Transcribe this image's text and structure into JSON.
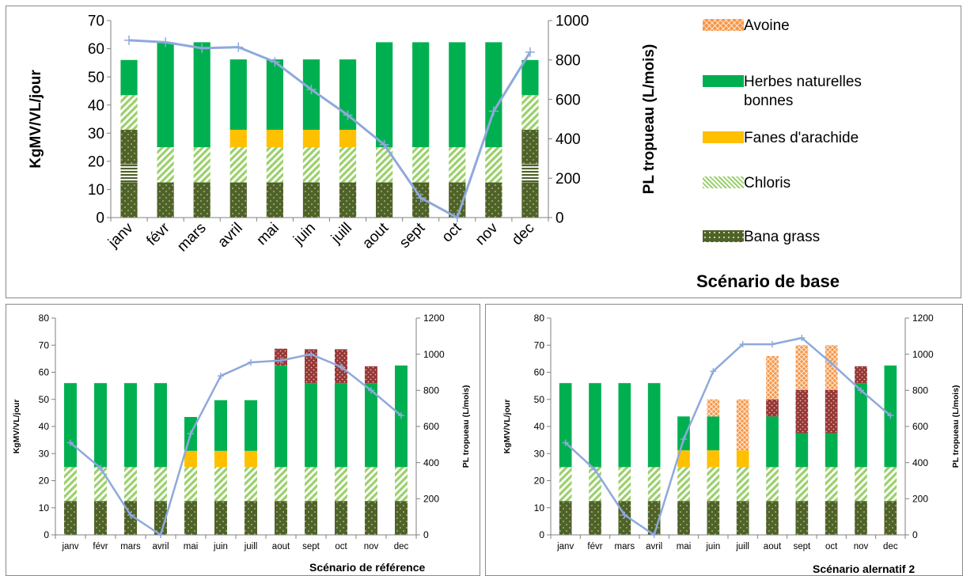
{
  "legend": [
    {
      "key": "avoine",
      "label": "Avoine"
    },
    {
      "key": "herbes",
      "label": "Herbes naturelles bonnes"
    },
    {
      "key": "fanes",
      "label": "Fanes d'arachide"
    },
    {
      "key": "chloris",
      "label": "Chloris"
    },
    {
      "key": "bana",
      "label": "Bana grass"
    }
  ],
  "colors": {
    "bana": "#4f6228",
    "chloris": "#9bd06b",
    "fanes": "#ffc000",
    "herbes": "#00b050",
    "rouge": "#953735",
    "avoine": "#f79646",
    "line": "#8ea9db",
    "grid": "#d9d9d9",
    "axis": "#808080"
  },
  "chart_data": [
    {
      "type": "bar",
      "title": "Scénario de base",
      "ylabel": "KgMV/VL/jour",
      "y2label": "PL tropueau (L/mois)",
      "ylim": [
        0,
        70
      ],
      "yticks": [
        0,
        10,
        20,
        30,
        40,
        50,
        60,
        70
      ],
      "y2lim": [
        0,
        1000
      ],
      "y2ticks": [
        0,
        200,
        400,
        600,
        800,
        1000
      ],
      "categories": [
        "janv",
        "févr",
        "mars",
        "avril",
        "mai",
        "juin",
        "juill",
        "aout",
        "sept",
        "oct",
        "nov",
        "dec"
      ],
      "series": [
        {
          "key": "bana",
          "values": [
            12.5,
            12.5,
            12.5,
            12.5,
            12.5,
            12.5,
            12.5,
            12.5,
            12.5,
            12.5,
            12.5,
            12.5
          ]
        },
        {
          "key": "autre",
          "values": [
            6.5,
            0,
            0,
            0,
            0,
            0,
            0,
            0,
            0,
            0,
            0,
            6.5
          ]
        },
        {
          "key": "bana2",
          "values": [
            12.2,
            0,
            0,
            0,
            0,
            0,
            0,
            0,
            0,
            0,
            0,
            12.2
          ]
        },
        {
          "key": "chloris",
          "values": [
            12.3,
            12.5,
            12.5,
            12.5,
            12.5,
            12.5,
            12.5,
            12.5,
            12.5,
            12.5,
            12.5,
            12.3
          ]
        },
        {
          "key": "fanes",
          "values": [
            0,
            0,
            0,
            6.2,
            6.2,
            6.2,
            6.2,
            0,
            0,
            0,
            0,
            0
          ]
        },
        {
          "key": "herbes",
          "values": [
            12.5,
            37.3,
            37.3,
            25,
            25,
            25,
            25,
            37.3,
            37.3,
            37.3,
            37.3,
            12.5
          ]
        }
      ],
      "line": {
        "axis": "y2",
        "values": [
          900,
          890,
          860,
          865,
          790,
          650,
          520,
          370,
          100,
          0,
          540,
          840
        ]
      }
    },
    {
      "type": "bar",
      "title": "Scénario de référence",
      "ylabel": "KgMV/VL/jour",
      "y2label": "PL tropueau (L/mois)",
      "ylim": [
        0,
        80
      ],
      "yticks": [
        0,
        10,
        20,
        30,
        40,
        50,
        60,
        70,
        80
      ],
      "y2lim": [
        0,
        1200
      ],
      "y2ticks": [
        0,
        200,
        400,
        600,
        800,
        1000,
        1200
      ],
      "categories": [
        "janv",
        "févr",
        "mars",
        "avril",
        "mai",
        "juin",
        "juill",
        "aout",
        "sept",
        "oct",
        "nov",
        "dec"
      ],
      "series": [
        {
          "key": "bana",
          "values": [
            12.5,
            12.5,
            12.5,
            12.5,
            12.5,
            12.5,
            12.5,
            12.5,
            12.5,
            12.5,
            12.5,
            12.5
          ]
        },
        {
          "key": "chloris",
          "values": [
            12.5,
            12.5,
            12.5,
            12.5,
            12.5,
            12.5,
            12.5,
            12.5,
            12.5,
            12.5,
            12.5,
            12.5
          ]
        },
        {
          "key": "fanes",
          "values": [
            0,
            0,
            0,
            0,
            6,
            6,
            6,
            0,
            0,
            0,
            0,
            0
          ]
        },
        {
          "key": "herbes",
          "values": [
            31,
            31,
            31,
            31,
            12.5,
            18.7,
            18.7,
            37.5,
            31,
            31,
            31,
            37.5
          ]
        },
        {
          "key": "rouge",
          "values": [
            0,
            0,
            0,
            0,
            0,
            0,
            0,
            6.2,
            12.5,
            12.5,
            6.2,
            0
          ]
        }
      ],
      "line": {
        "axis": "y2",
        "values": [
          510,
          370,
          110,
          0,
          560,
          880,
          955,
          965,
          1000,
          930,
          800,
          660
        ]
      }
    },
    {
      "type": "bar",
      "title": "Scénario alernatif 2",
      "ylabel": "KgMV/VL/jour",
      "y2label": "PL tropueau (L/mois)",
      "ylim": [
        0,
        80
      ],
      "yticks": [
        0,
        10,
        20,
        30,
        40,
        50,
        60,
        70,
        80
      ],
      "y2lim": [
        0,
        1200
      ],
      "y2ticks": [
        0,
        200,
        400,
        600,
        800,
        1000,
        1200
      ],
      "categories": [
        "janv",
        "févr",
        "mars",
        "avril",
        "mai",
        "juin",
        "juill",
        "aout",
        "sept",
        "oct",
        "nov",
        "dec"
      ],
      "series": [
        {
          "key": "bana",
          "values": [
            12.5,
            12.5,
            12.5,
            12.5,
            12.5,
            12.5,
            12.5,
            12.5,
            12.5,
            12.5,
            12.5,
            12.5
          ]
        },
        {
          "key": "chloris",
          "values": [
            12.5,
            12.5,
            12.5,
            12.5,
            12.5,
            12.5,
            12.5,
            12.5,
            12.5,
            12.5,
            12.5,
            12.5
          ]
        },
        {
          "key": "fanes",
          "values": [
            0,
            0,
            0,
            0,
            6.2,
            6.2,
            6.2,
            0,
            0,
            0,
            0,
            0
          ]
        },
        {
          "key": "herbes",
          "values": [
            31,
            31,
            31,
            31,
            12.5,
            12.5,
            0,
            18.7,
            12.5,
            12.5,
            31,
            37.5
          ]
        },
        {
          "key": "rouge",
          "values": [
            0,
            0,
            0,
            0,
            0,
            0,
            0,
            6.3,
            16,
            16,
            6.2,
            0
          ]
        },
        {
          "key": "avoine",
          "values": [
            0,
            0,
            0,
            0,
            0,
            6.3,
            18.8,
            16,
            16.5,
            16.5,
            0,
            0
          ]
        }
      ],
      "line": {
        "axis": "y2",
        "values": [
          510,
          360,
          110,
          0,
          530,
          905,
          1055,
          1055,
          1090,
          950,
          800,
          660
        ]
      }
    }
  ]
}
